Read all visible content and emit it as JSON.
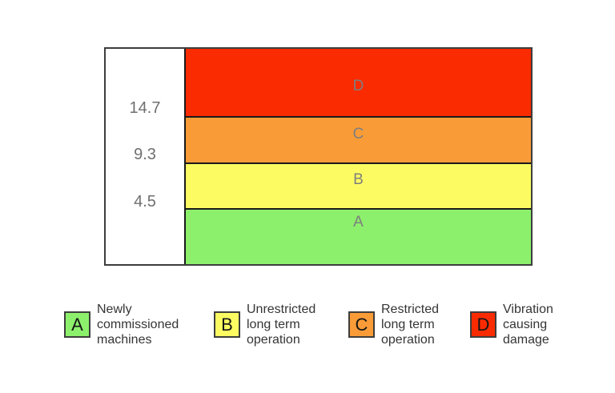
{
  "chart": {
    "thresholds": [
      "14.7",
      "9.3",
      "4.5"
    ],
    "zones_top_to_bottom": [
      {
        "letter": "D",
        "color": "#FA2B01"
      },
      {
        "letter": "C",
        "color": "#F99C38"
      },
      {
        "letter": "B",
        "color": "#FCFC62"
      },
      {
        "letter": "A",
        "color": "#8DF06C"
      }
    ]
  },
  "legend": {
    "items": [
      {
        "letter": "A",
        "color": "#8DF06C",
        "label": "Newly\ncommissioned\nmachines"
      },
      {
        "letter": "B",
        "color": "#FCFC62",
        "label": "Unrestricted\nlong term\noperation"
      },
      {
        "letter": "C",
        "color": "#F99C38",
        "label": "Restricted\nlong term\noperation"
      },
      {
        "letter": "D",
        "color": "#FA2B01",
        "label": "Vibration\ncausing\ndamage"
      }
    ]
  },
  "chart_data": {
    "type": "bar",
    "subtype": "horizontal-severity-zone-bands",
    "thresholds": [
      4.5,
      9.3,
      14.7
    ],
    "zones": [
      {
        "zone": "A",
        "range": [
          null,
          4.5
        ],
        "meaning": "Newly commissioned machines",
        "color": "#8DF06C"
      },
      {
        "zone": "B",
        "range": [
          4.5,
          9.3
        ],
        "meaning": "Unrestricted long term operation",
        "color": "#FCFC62"
      },
      {
        "zone": "C",
        "range": [
          9.3,
          14.7
        ],
        "meaning": "Restricted long term operation",
        "color": "#F99C38"
      },
      {
        "zone": "D",
        "range": [
          14.7,
          null
        ],
        "meaning": "Vibration causing damage",
        "color": "#FA2B01"
      }
    ],
    "legend_position": "bottom",
    "grid": false
  }
}
